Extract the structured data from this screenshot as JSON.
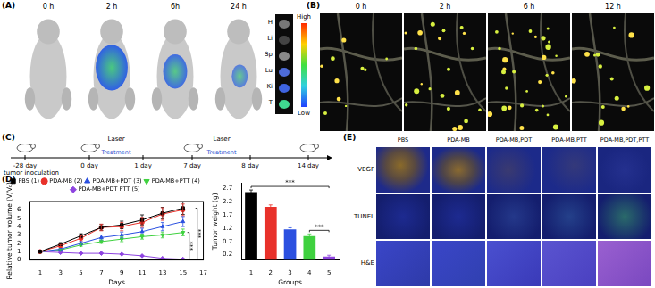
{
  "panel_labels": [
    "(A)",
    "(B)",
    "(C)",
    "(D)",
    "(E)"
  ],
  "panel_a": {
    "times": [
      "0 h",
      "2 h",
      "6h",
      "24 h"
    ],
    "organs": [
      "H",
      "Li",
      "Sp",
      "Lu",
      "Ki",
      "T"
    ],
    "colorbar": [
      "High",
      "Low"
    ]
  },
  "panel_b": {
    "times": [
      "0 h",
      "2 h",
      "6 h",
      "12 h"
    ]
  },
  "panel_c": {
    "days": [
      "-28 day",
      "0 day",
      "1 day",
      "7 day",
      "8 day",
      "14 day"
    ],
    "start": "tumor inoculation",
    "laser": "Laser",
    "treatment": "Treatment"
  },
  "panel_e": {
    "columns": [
      "PBS",
      "PDA-MB",
      "PDA-MB,PDT",
      "PDA-MB,PTT",
      "PDA-MB,PDT,PTT"
    ],
    "rows": [
      "VEGF",
      "TUNEL",
      "H&E"
    ]
  },
  "chart_data": [
    {
      "type": "line",
      "x_label": "Days",
      "y_label": "Relative tumor volume (V/V₀)",
      "x": [
        1,
        3,
        5,
        7,
        9,
        11,
        13,
        15
      ],
      "xlim": [
        0,
        17
      ],
      "xticks": [
        1,
        3,
        5,
        7,
        9,
        11,
        13,
        15,
        17
      ],
      "ylim": [
        0,
        7
      ],
      "yticks": [
        0,
        1,
        2,
        3,
        4,
        5,
        6
      ],
      "grid": false,
      "legend": "top",
      "series": [
        {
          "name": "PBS (1)",
          "color": "#000000",
          "marker": "square",
          "values": [
            1,
            1.9,
            2.9,
            3.9,
            4.2,
            4.8,
            5.6,
            6.2
          ],
          "errors": [
            0,
            0.15,
            0.25,
            0.35,
            0.45,
            0.6,
            0.7,
            0.75
          ]
        },
        {
          "name": "PDA-MB (2)",
          "color": "#e8312a",
          "marker": "circle",
          "values": [
            1,
            1.7,
            2.6,
            3.9,
            4.0,
            4.5,
            5.5,
            6.0
          ],
          "errors": [
            0,
            0.15,
            0.3,
            0.4,
            0.5,
            0.6,
            0.75,
            0.7
          ]
        },
        {
          "name": "PDA-MB+PDT (3)",
          "color": "#2b50e0",
          "marker": "triangle",
          "values": [
            1,
            1.3,
            2.0,
            2.7,
            3.0,
            3.4,
            4.0,
            4.6
          ],
          "errors": [
            0,
            0.1,
            0.2,
            0.3,
            0.35,
            0.4,
            0.5,
            0.6
          ]
        },
        {
          "name": "PDA-MB+PTT (4)",
          "color": "#3fd13f",
          "marker": "triangle-down",
          "values": [
            1,
            1.2,
            1.8,
            2.2,
            2.5,
            2.8,
            3.0,
            3.3
          ],
          "errors": [
            0,
            0.1,
            0.15,
            0.2,
            0.3,
            0.3,
            0.35,
            0.4
          ]
        },
        {
          "name": "PDA-MB+PDT PTT (5)",
          "color": "#8e44e0",
          "marker": "diamond",
          "values": [
            1,
            0.9,
            0.8,
            0.8,
            0.7,
            0.5,
            0.2,
            0.1
          ],
          "errors": [
            0,
            0.05,
            0.05,
            0.05,
            0.05,
            0.05,
            0.05,
            0.05
          ]
        }
      ],
      "significance": [
        {
          "series": [
            4,
            5
          ],
          "label": "***"
        },
        {
          "series": [
            1,
            5
          ],
          "label": "***"
        }
      ]
    },
    {
      "type": "bar",
      "x_label": "Groups",
      "y_label": "Tumor weight (g)",
      "categories": [
        "1",
        "2",
        "3",
        "4",
        "5"
      ],
      "values": [
        2.55,
        2.0,
        1.15,
        0.9,
        0.13
      ],
      "errors": [
        0.08,
        0.07,
        0.06,
        0.08,
        0.05
      ],
      "colors": [
        "#000000",
        "#e8312a",
        "#2b50e0",
        "#3fd13f",
        "#8e44e0"
      ],
      "ylim": [
        0,
        2.9
      ],
      "yticks": [
        0.2,
        0.7,
        1.2,
        1.7,
        2.2,
        2.7
      ],
      "grid": false,
      "significance": [
        {
          "groups": [
            "4",
            "5"
          ],
          "label": "***"
        },
        {
          "groups": [
            "1",
            "5"
          ],
          "label": "***"
        }
      ]
    }
  ]
}
